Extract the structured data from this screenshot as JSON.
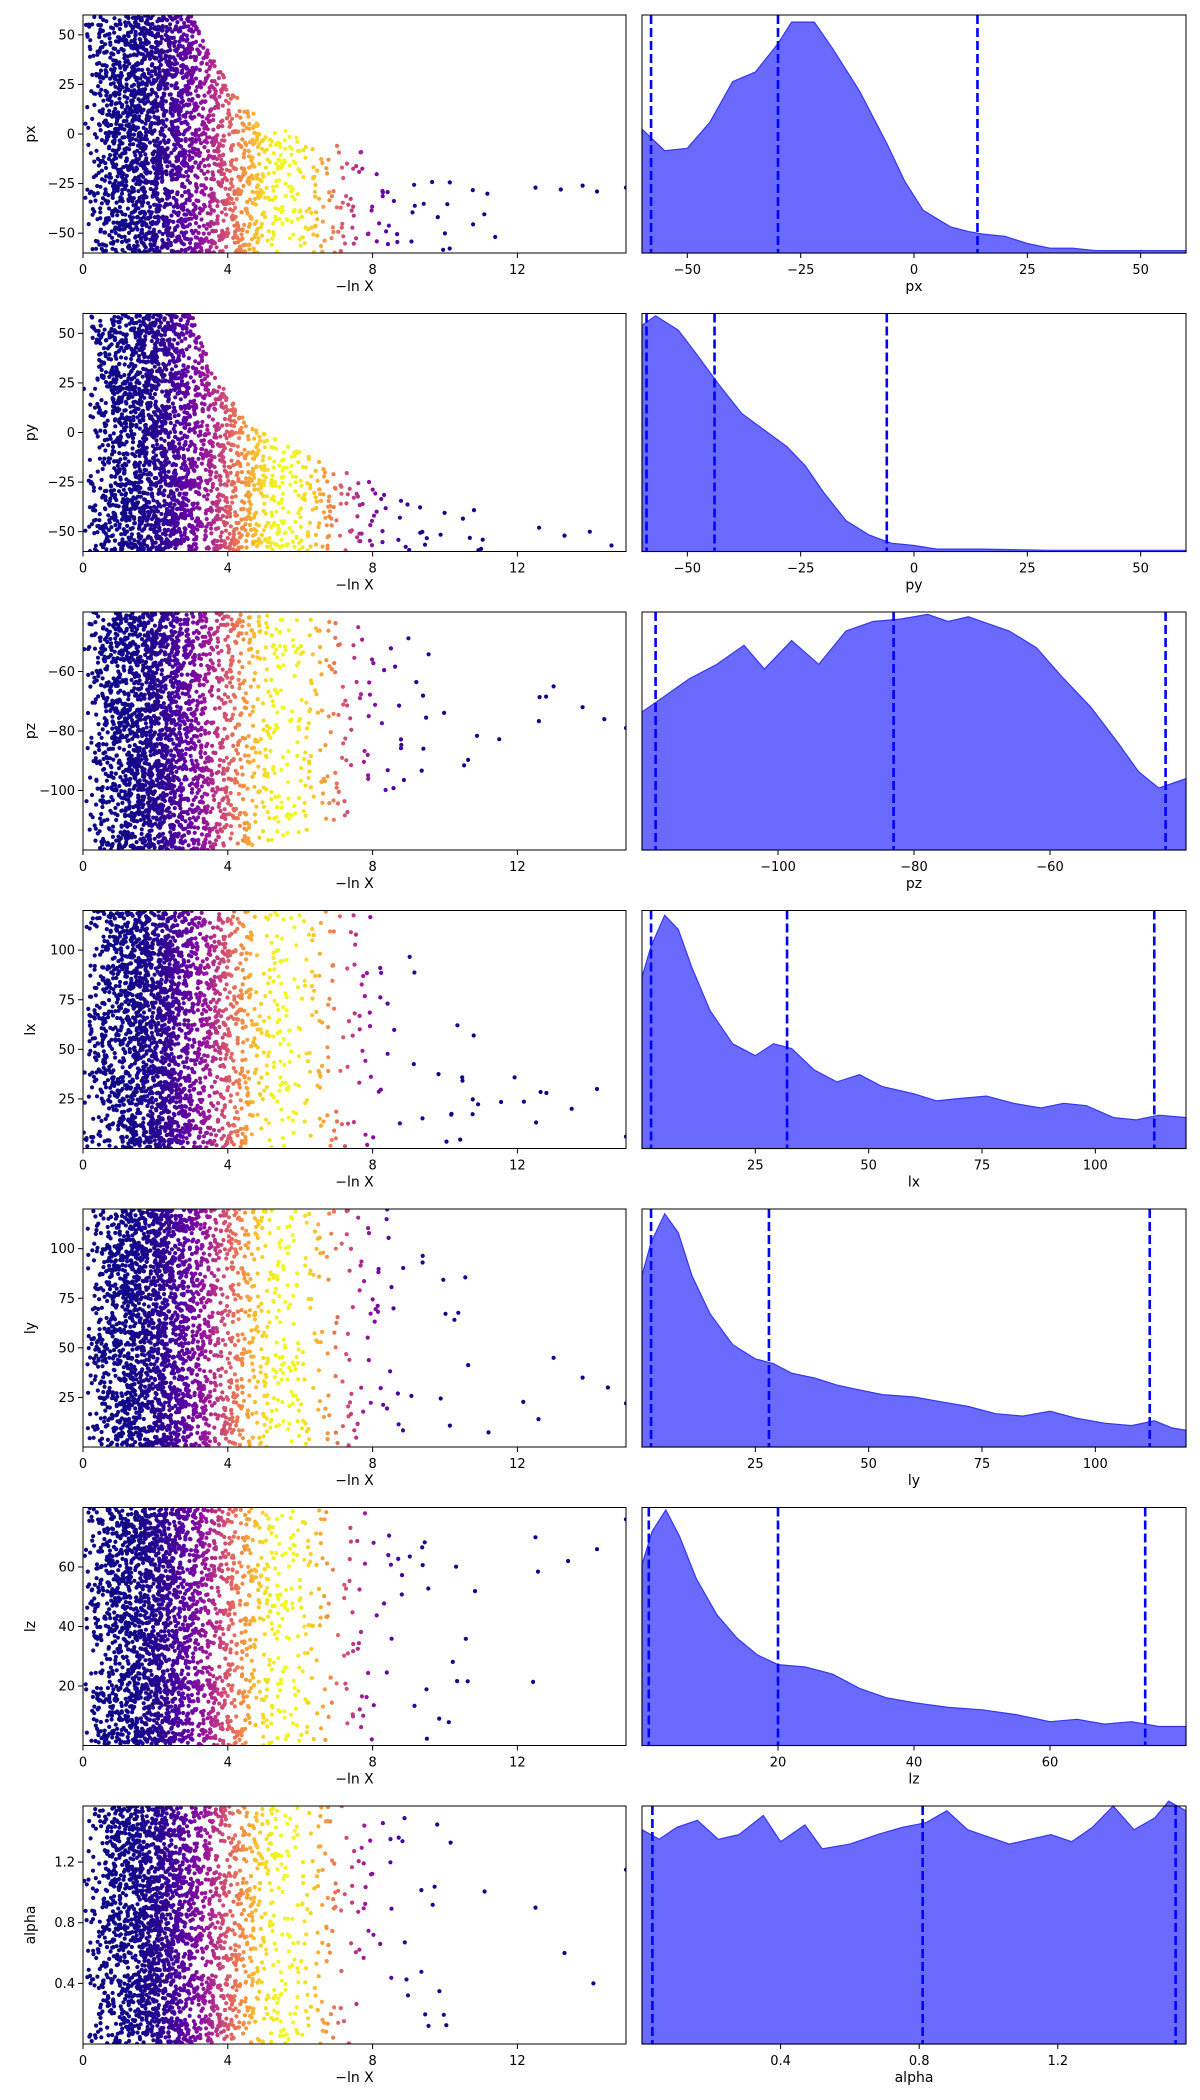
{
  "figure": {
    "scatter_xlabel": "−ln X",
    "colormap": [
      "#0d0887",
      "#5b02a3",
      "#9a179b",
      "#cb4678",
      "#eb7852",
      "#fbb32f",
      "#f0f921"
    ],
    "kde_fill": "#5050ff",
    "kde_edge": "#3636f0",
    "quantile_line": "#0000ff"
  },
  "chart_data": [
    {
      "panel": "px",
      "type": "scatter",
      "xlabel": "−ln X",
      "ylabel": "px",
      "xlim": [
        0,
        15
      ],
      "xticks": [
        "0",
        "4",
        "8",
        "12"
      ],
      "xtick_values": [
        0,
        4,
        8,
        12
      ],
      "ylim": [
        -60,
        60
      ],
      "yticks": [
        "−50",
        "−25",
        "0",
        "25",
        "50"
      ],
      "ytick_values": [
        -50,
        -25,
        0,
        25,
        50
      ],
      "envelope": [
        [
          0,
          60
        ],
        [
          3,
          60
        ],
        [
          3.5,
          40
        ],
        [
          4.5,
          12
        ],
        [
          6,
          0
        ],
        [
          8,
          -10
        ],
        [
          10,
          -18
        ],
        [
          12,
          -22
        ],
        [
          15,
          -27
        ]
      ],
      "trail": [
        [
          12.5,
          -27
        ],
        [
          13.2,
          -28
        ],
        [
          13.8,
          -26
        ],
        [
          14.2,
          -29
        ],
        [
          15,
          -27
        ]
      ]
    },
    {
      "panel": "px",
      "type": "area",
      "xlabel": "px",
      "xlim": [
        -60,
        60
      ],
      "xticks": [
        "−50",
        "−25",
        "0",
        "25",
        "50"
      ],
      "xtick_values": [
        -50,
        -25,
        0,
        25,
        50
      ],
      "density": [
        [
          -60,
          0.52
        ],
        [
          -55,
          0.43
        ],
        [
          -50,
          0.44
        ],
        [
          -45,
          0.55
        ],
        [
          -40,
          0.72
        ],
        [
          -35,
          0.76
        ],
        [
          -30,
          0.88
        ],
        [
          -27,
          0.97
        ],
        [
          -22,
          0.97
        ],
        [
          -18,
          0.86
        ],
        [
          -12,
          0.68
        ],
        [
          -6,
          0.46
        ],
        [
          -2,
          0.3
        ],
        [
          2,
          0.18
        ],
        [
          8,
          0.11
        ],
        [
          12,
          0.09
        ],
        [
          15,
          0.08
        ],
        [
          20,
          0.07
        ],
        [
          25,
          0.04
        ],
        [
          30,
          0.02
        ],
        [
          35,
          0.02
        ],
        [
          40,
          0.01
        ],
        [
          50,
          0.01
        ],
        [
          60,
          0.01
        ]
      ],
      "quantiles": [
        -58,
        -30,
        14
      ]
    },
    {
      "panel": "py",
      "type": "scatter",
      "xlabel": "−ln X",
      "ylabel": "py",
      "xlim": [
        0,
        15
      ],
      "xticks": [
        "0",
        "4",
        "8",
        "12"
      ],
      "xtick_values": [
        0,
        4,
        8,
        12
      ],
      "ylim": [
        -60,
        60
      ],
      "yticks": [
        "−50",
        "−25",
        "0",
        "25",
        "50"
      ],
      "ytick_values": [
        -50,
        -25,
        0,
        25,
        50
      ],
      "envelope": [
        [
          0,
          60
        ],
        [
          3,
          60
        ],
        [
          3.6,
          30
        ],
        [
          4.5,
          5
        ],
        [
          6,
          -10
        ],
        [
          8,
          -25
        ],
        [
          10,
          -35
        ],
        [
          12,
          -42
        ],
        [
          15,
          -55
        ]
      ],
      "trail": [
        [
          12.6,
          -48
        ],
        [
          13.3,
          -52
        ],
        [
          14,
          -50
        ],
        [
          14.6,
          -57
        ]
      ]
    },
    {
      "panel": "py",
      "type": "area",
      "xlabel": "py",
      "xlim": [
        -60,
        60
      ],
      "xticks": [
        "−50",
        "−25",
        "0",
        "25",
        "50"
      ],
      "xtick_values": [
        -50,
        -25,
        0,
        25,
        50
      ],
      "density": [
        [
          -60,
          0.95
        ],
        [
          -57,
          0.99
        ],
        [
          -52,
          0.93
        ],
        [
          -48,
          0.83
        ],
        [
          -43,
          0.7
        ],
        [
          -38,
          0.58
        ],
        [
          -33,
          0.51
        ],
        [
          -28,
          0.44
        ],
        [
          -24,
          0.36
        ],
        [
          -20,
          0.25
        ],
        [
          -15,
          0.13
        ],
        [
          -10,
          0.07
        ],
        [
          -5,
          0.035
        ],
        [
          0,
          0.025
        ],
        [
          5,
          0.01
        ],
        [
          15,
          0.01
        ],
        [
          30,
          0.005
        ],
        [
          60,
          0.005
        ]
      ],
      "quantiles": [
        -59,
        -44,
        -6
      ]
    },
    {
      "panel": "pz",
      "type": "scatter",
      "xlabel": "−ln X",
      "ylabel": "pz",
      "xlim": [
        0,
        15
      ],
      "xticks": [
        "0",
        "4",
        "8",
        "12"
      ],
      "xtick_values": [
        0,
        4,
        8,
        12
      ],
      "ylim": [
        -120,
        -40
      ],
      "yticks": [
        "−100",
        "−80",
        "−60"
      ],
      "ytick_values": [
        -100,
        -80,
        -60
      ],
      "envelope": [
        [
          0,
          -40
        ],
        [
          4,
          -40
        ],
        [
          6,
          -42
        ],
        [
          8,
          -45
        ],
        [
          10,
          -50
        ],
        [
          12,
          -55
        ],
        [
          15,
          -60
        ]
      ],
      "envelope_low": [
        [
          0,
          -120
        ],
        [
          4,
          -120
        ],
        [
          6,
          -115
        ],
        [
          8,
          -105
        ],
        [
          10,
          -95
        ],
        [
          12,
          -88
        ],
        [
          15,
          -82
        ]
      ],
      "trail": [
        [
          13,
          -65
        ],
        [
          13.8,
          -72
        ],
        [
          14.4,
          -76
        ],
        [
          15,
          -79
        ]
      ]
    },
    {
      "panel": "pz",
      "type": "area",
      "xlabel": "pz",
      "xlim": [
        -120,
        -40
      ],
      "xticks": [
        "−100",
        "−80",
        "−60"
      ],
      "xtick_values": [
        -100,
        -80,
        -60
      ],
      "density": [
        [
          -120,
          0.58
        ],
        [
          -117,
          0.64
        ],
        [
          -113,
          0.72
        ],
        [
          -109,
          0.78
        ],
        [
          -105,
          0.86
        ],
        [
          -102,
          0.76
        ],
        [
          -98,
          0.88
        ],
        [
          -94,
          0.78
        ],
        [
          -90,
          0.92
        ],
        [
          -86,
          0.96
        ],
        [
          -82,
          0.97
        ],
        [
          -78,
          0.99
        ],
        [
          -75,
          0.96
        ],
        [
          -72,
          0.98
        ],
        [
          -69,
          0.95
        ],
        [
          -66,
          0.92
        ],
        [
          -62,
          0.85
        ],
        [
          -58,
          0.72
        ],
        [
          -54,
          0.6
        ],
        [
          -50,
          0.45
        ],
        [
          -47,
          0.33
        ],
        [
          -44,
          0.26
        ],
        [
          -41,
          0.29
        ],
        [
          -40,
          0.3
        ]
      ],
      "quantiles": [
        -118,
        -83,
        -43
      ]
    },
    {
      "panel": "lx",
      "type": "scatter",
      "xlabel": "−ln X",
      "ylabel": "lx",
      "xlim": [
        0,
        15
      ],
      "xticks": [
        "0",
        "4",
        "8",
        "12"
      ],
      "xtick_values": [
        0,
        4,
        8,
        12
      ],
      "ylim": [
        0,
        120
      ],
      "yticks": [
        "25",
        "50",
        "75",
        "100"
      ],
      "ytick_values": [
        25,
        50,
        75,
        100
      ],
      "envelope": [
        [
          0,
          120
        ],
        [
          9,
          120
        ],
        [
          10,
          85
        ],
        [
          11,
          55
        ],
        [
          12,
          35
        ],
        [
          13,
          25
        ],
        [
          15,
          15
        ]
      ],
      "trail": [
        [
          12.8,
          28
        ],
        [
          13.5,
          20
        ],
        [
          14.2,
          30
        ],
        [
          15,
          6
        ]
      ]
    },
    {
      "panel": "lx",
      "type": "area",
      "xlabel": "lx",
      "xlim": [
        0,
        120
      ],
      "xticks": [
        "25",
        "50",
        "75",
        "100"
      ],
      "xtick_values": [
        25,
        50,
        75,
        100
      ],
      "density": [
        [
          0,
          0.72
        ],
        [
          2,
          0.85
        ],
        [
          5,
          0.98
        ],
        [
          8,
          0.92
        ],
        [
          11,
          0.76
        ],
        [
          15,
          0.58
        ],
        [
          20,
          0.44
        ],
        [
          25,
          0.39
        ],
        [
          29,
          0.44
        ],
        [
          33,
          0.42
        ],
        [
          38,
          0.33
        ],
        [
          43,
          0.28
        ],
        [
          48,
          0.31
        ],
        [
          53,
          0.26
        ],
        [
          60,
          0.23
        ],
        [
          65,
          0.2
        ],
        [
          70,
          0.21
        ],
        [
          76,
          0.22
        ],
        [
          82,
          0.19
        ],
        [
          88,
          0.17
        ],
        [
          93,
          0.19
        ],
        [
          98,
          0.18
        ],
        [
          104,
          0.13
        ],
        [
          109,
          0.12
        ],
        [
          114,
          0.14
        ],
        [
          120,
          0.13
        ]
      ],
      "quantiles": [
        2,
        32,
        113
      ]
    },
    {
      "panel": "ly",
      "type": "scatter",
      "xlabel": "−ln X",
      "ylabel": "ly",
      "xlim": [
        0,
        15
      ],
      "xticks": [
        "0",
        "4",
        "8",
        "12"
      ],
      "xtick_values": [
        0,
        4,
        8,
        12
      ],
      "ylim": [
        0,
        120
      ],
      "yticks": [
        "25",
        "50",
        "75",
        "100"
      ],
      "ytick_values": [
        25,
        50,
        75,
        100
      ],
      "envelope": [
        [
          0,
          120
        ],
        [
          9,
          120
        ],
        [
          10,
          100
        ],
        [
          11,
          75
        ],
        [
          12,
          55
        ],
        [
          13.5,
          40
        ],
        [
          15,
          25
        ]
      ],
      "trail": [
        [
          13,
          45
        ],
        [
          13.8,
          35
        ],
        [
          14.5,
          30
        ],
        [
          15,
          22
        ]
      ]
    },
    {
      "panel": "ly",
      "type": "area",
      "xlabel": "ly",
      "xlim": [
        0,
        120
      ],
      "xticks": [
        "25",
        "50",
        "75",
        "100"
      ],
      "xtick_values": [
        25,
        50,
        75,
        100
      ],
      "density": [
        [
          0,
          0.72
        ],
        [
          2,
          0.86
        ],
        [
          5,
          0.98
        ],
        [
          8,
          0.9
        ],
        [
          11,
          0.72
        ],
        [
          15,
          0.56
        ],
        [
          20,
          0.43
        ],
        [
          25,
          0.37
        ],
        [
          29,
          0.35
        ],
        [
          33,
          0.31
        ],
        [
          38,
          0.29
        ],
        [
          43,
          0.26
        ],
        [
          48,
          0.24
        ],
        [
          53,
          0.22
        ],
        [
          60,
          0.21
        ],
        [
          66,
          0.19
        ],
        [
          72,
          0.17
        ],
        [
          78,
          0.14
        ],
        [
          84,
          0.13
        ],
        [
          90,
          0.15
        ],
        [
          96,
          0.12
        ],
        [
          102,
          0.1
        ],
        [
          108,
          0.09
        ],
        [
          113,
          0.11
        ],
        [
          117,
          0.08
        ],
        [
          120,
          0.07
        ]
      ],
      "quantiles": [
        2,
        28,
        112
      ]
    },
    {
      "panel": "lz",
      "type": "scatter",
      "xlabel": "−ln X",
      "ylabel": "lz",
      "xlim": [
        0,
        15
      ],
      "xticks": [
        "0",
        "4",
        "8",
        "12"
      ],
      "xtick_values": [
        0,
        4,
        8,
        12
      ],
      "ylim": [
        0,
        80
      ],
      "yticks": [
        "20",
        "40",
        "60"
      ],
      "ytick_values": [
        20,
        40,
        60
      ],
      "envelope": [
        [
          0,
          80
        ],
        [
          9,
          80
        ],
        [
          10,
          78
        ],
        [
          11,
          70
        ],
        [
          12,
          65
        ],
        [
          13.5,
          60
        ],
        [
          15,
          76
        ]
      ],
      "trail": [
        [
          12.5,
          70
        ],
        [
          13.4,
          62
        ],
        [
          14.2,
          66
        ],
        [
          15,
          76
        ]
      ]
    },
    {
      "panel": "lz",
      "type": "area",
      "xlabel": "lz",
      "xlim": [
        0,
        80
      ],
      "xticks": [
        "20",
        "40",
        "60"
      ],
      "xtick_values": [
        20,
        40,
        60
      ],
      "density": [
        [
          0,
          0.76
        ],
        [
          1.5,
          0.9
        ],
        [
          3.5,
          0.99
        ],
        [
          5.5,
          0.88
        ],
        [
          8,
          0.7
        ],
        [
          11,
          0.55
        ],
        [
          14,
          0.45
        ],
        [
          17,
          0.38
        ],
        [
          20,
          0.34
        ],
        [
          24,
          0.33
        ],
        [
          28,
          0.3
        ],
        [
          32,
          0.24
        ],
        [
          36,
          0.2
        ],
        [
          40,
          0.18
        ],
        [
          45,
          0.16
        ],
        [
          50,
          0.15
        ],
        [
          55,
          0.13
        ],
        [
          60,
          0.1
        ],
        [
          64,
          0.11
        ],
        [
          68,
          0.09
        ],
        [
          72,
          0.1
        ],
        [
          76,
          0.08
        ],
        [
          80,
          0.08
        ]
      ],
      "quantiles": [
        1,
        20,
        74
      ]
    },
    {
      "panel": "alpha",
      "type": "scatter",
      "xlabel": "−ln X",
      "ylabel": "alpha",
      "xlim": [
        0,
        15
      ],
      "xticks": [
        "0",
        "4",
        "8",
        "12"
      ],
      "xtick_values": [
        0,
        4,
        8,
        12
      ],
      "ylim": [
        0,
        1.57
      ],
      "yticks": [
        "0.4",
        "0.8",
        "1.2"
      ],
      "ytick_values": [
        0.4,
        0.8,
        1.2
      ],
      "envelope": [
        [
          0,
          1.57
        ],
        [
          15,
          1.57
        ]
      ],
      "trail": [
        [
          12.5,
          0.9
        ],
        [
          13.3,
          0.6
        ],
        [
          14.1,
          0.4
        ],
        [
          15,
          1.15
        ]
      ]
    },
    {
      "panel": "alpha",
      "type": "area",
      "xlabel": "alpha",
      "xlim": [
        0,
        1.57
      ],
      "xticks": [
        "0.4",
        "0.8",
        "1.2"
      ],
      "xtick_values": [
        0.4,
        0.8,
        1.2
      ],
      "density": [
        [
          0,
          0.9
        ],
        [
          0.05,
          0.86
        ],
        [
          0.1,
          0.91
        ],
        [
          0.16,
          0.94
        ],
        [
          0.22,
          0.86
        ],
        [
          0.28,
          0.88
        ],
        [
          0.35,
          0.96
        ],
        [
          0.4,
          0.85
        ],
        [
          0.47,
          0.92
        ],
        [
          0.52,
          0.82
        ],
        [
          0.6,
          0.84
        ],
        [
          0.68,
          0.88
        ],
        [
          0.75,
          0.91
        ],
        [
          0.82,
          0.93
        ],
        [
          0.88,
          0.98
        ],
        [
          0.94,
          0.9
        ],
        [
          1.0,
          0.87
        ],
        [
          1.06,
          0.84
        ],
        [
          1.12,
          0.86
        ],
        [
          1.18,
          0.88
        ],
        [
          1.24,
          0.85
        ],
        [
          1.3,
          0.91
        ],
        [
          1.36,
          1.0
        ],
        [
          1.42,
          0.9
        ],
        [
          1.48,
          0.95
        ],
        [
          1.52,
          1.02
        ],
        [
          1.57,
          0.98
        ]
      ],
      "quantiles": [
        0.03,
        0.81,
        1.54
      ]
    }
  ]
}
